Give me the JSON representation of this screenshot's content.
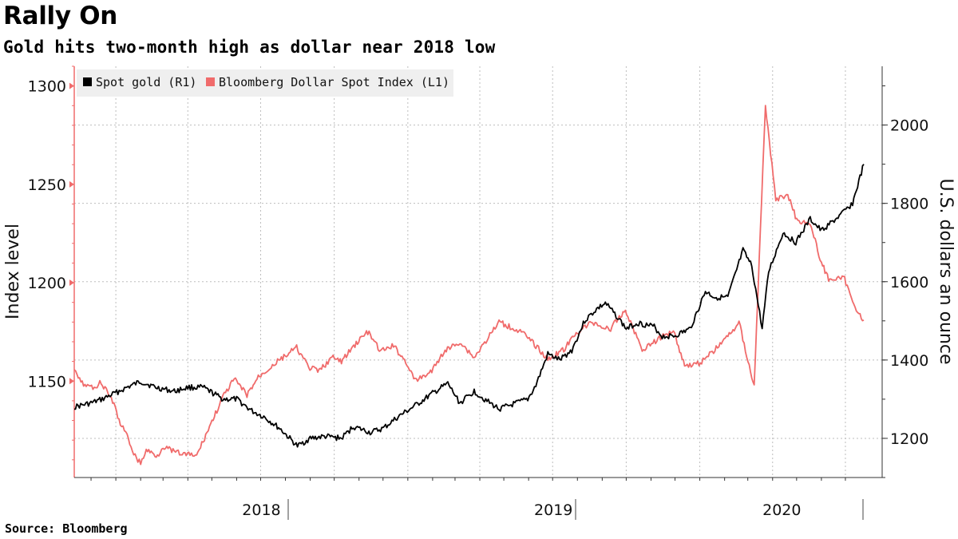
{
  "title": "Rally On",
  "subtitle": "Gold hits two-month high as dollar near 2018 low",
  "source": "Source: Bloomberg",
  "chart_data": {
    "type": "line",
    "x_range": [
      "2017-11-10",
      "2020-07-24"
    ],
    "year_labels": [
      {
        "label": "2018",
        "start": "2018-01-01",
        "end": "2018-12-31"
      },
      {
        "label": "2019",
        "start": "2019-01-01",
        "end": "2019-12-31"
      },
      {
        "label": "2020",
        "start": "2020-01-01",
        "end": "2020-07-24"
      }
    ],
    "left_axis": {
      "title": "Index level",
      "min": 1101,
      "max": 1310,
      "ticks": [
        1150,
        1200,
        1250,
        1300
      ],
      "minor_step": 10
    },
    "right_axis": {
      "title": "U.S. dollars an ounce",
      "min": 1100,
      "max": 2150,
      "ticks": [
        1200,
        1400,
        1600,
        1800,
        2000
      ],
      "minor_step": 100
    },
    "grid": true,
    "legend": {
      "position": "top-left"
    },
    "series": [
      {
        "name": "Spot gold (R1)",
        "axis": "right",
        "color": "#000000",
        "points": [
          [
            "2017-11-10",
            1280
          ],
          [
            "2017-12-01",
            1290
          ],
          [
            "2017-12-15",
            1300
          ],
          [
            "2018-01-15",
            1330
          ],
          [
            "2018-02-01",
            1345
          ],
          [
            "2018-02-20",
            1330
          ],
          [
            "2018-03-15",
            1320
          ],
          [
            "2018-04-01",
            1330
          ],
          [
            "2018-04-20",
            1330
          ],
          [
            "2018-05-15",
            1300
          ],
          [
            "2018-06-01",
            1300
          ],
          [
            "2018-06-20",
            1270
          ],
          [
            "2018-07-05",
            1255
          ],
          [
            "2018-07-25",
            1225
          ],
          [
            "2018-08-16",
            1180
          ],
          [
            "2018-09-01",
            1200
          ],
          [
            "2018-09-20",
            1205
          ],
          [
            "2018-10-10",
            1200
          ],
          [
            "2018-10-25",
            1230
          ],
          [
            "2018-11-15",
            1215
          ],
          [
            "2018-12-01",
            1225
          ],
          [
            "2018-12-20",
            1255
          ],
          [
            "2019-01-15",
            1290
          ],
          [
            "2019-02-01",
            1315
          ],
          [
            "2019-02-20",
            1340
          ],
          [
            "2019-03-07",
            1290
          ],
          [
            "2019-03-25",
            1320
          ],
          [
            "2019-04-10",
            1295
          ],
          [
            "2019-04-25",
            1275
          ],
          [
            "2019-05-10",
            1285
          ],
          [
            "2019-05-31",
            1300
          ],
          [
            "2019-06-10",
            1335
          ],
          [
            "2019-06-25",
            1415
          ],
          [
            "2019-07-10",
            1400
          ],
          [
            "2019-07-25",
            1425
          ],
          [
            "2019-08-10",
            1500
          ],
          [
            "2019-08-25",
            1530
          ],
          [
            "2019-09-05",
            1545
          ],
          [
            "2019-09-20",
            1510
          ],
          [
            "2019-10-01",
            1480
          ],
          [
            "2019-10-15",
            1495
          ],
          [
            "2019-11-05",
            1485
          ],
          [
            "2019-11-15",
            1460
          ],
          [
            "2019-12-01",
            1462
          ],
          [
            "2019-12-20",
            1480
          ],
          [
            "2020-01-08",
            1575
          ],
          [
            "2020-01-20",
            1560
          ],
          [
            "2020-02-05",
            1560
          ],
          [
            "2020-02-24",
            1680
          ],
          [
            "2020-03-06",
            1640
          ],
          [
            "2020-03-19",
            1480
          ],
          [
            "2020-03-27",
            1625
          ],
          [
            "2020-04-14",
            1725
          ],
          [
            "2020-04-30",
            1700
          ],
          [
            "2020-05-18",
            1760
          ],
          [
            "2020-06-01",
            1730
          ],
          [
            "2020-06-25",
            1770
          ],
          [
            "2020-07-10",
            1800
          ],
          [
            "2020-07-24",
            1900
          ]
        ]
      },
      {
        "name": "Bloomberg Dollar Spot Index (L1)",
        "axis": "left",
        "color": "#f06b6b",
        "points": [
          [
            "2017-11-10",
            1157
          ],
          [
            "2017-11-20",
            1149
          ],
          [
            "2017-12-05",
            1146
          ],
          [
            "2017-12-12",
            1150
          ],
          [
            "2017-12-28",
            1140
          ],
          [
            "2018-01-05",
            1130
          ],
          [
            "2018-01-15",
            1122
          ],
          [
            "2018-01-25",
            1112
          ],
          [
            "2018-02-01",
            1108
          ],
          [
            "2018-02-08",
            1115
          ],
          [
            "2018-02-22",
            1112
          ],
          [
            "2018-03-01",
            1117
          ],
          [
            "2018-03-15",
            1114
          ],
          [
            "2018-03-25",
            1113
          ],
          [
            "2018-04-12",
            1112
          ],
          [
            "2018-04-25",
            1124
          ],
          [
            "2018-05-15",
            1142
          ],
          [
            "2018-05-29",
            1151
          ],
          [
            "2018-06-14",
            1143
          ],
          [
            "2018-06-28",
            1152
          ],
          [
            "2018-07-19",
            1159
          ],
          [
            "2018-08-15",
            1167
          ],
          [
            "2018-08-30",
            1157
          ],
          [
            "2018-09-12",
            1155
          ],
          [
            "2018-09-28",
            1162
          ],
          [
            "2018-10-10",
            1160
          ],
          [
            "2018-10-30",
            1170
          ],
          [
            "2018-11-12",
            1175
          ],
          [
            "2018-11-28",
            1165
          ],
          [
            "2018-12-14",
            1168
          ],
          [
            "2018-12-31",
            1159
          ],
          [
            "2019-01-10",
            1150
          ],
          [
            "2019-01-31",
            1155
          ],
          [
            "2019-02-15",
            1165
          ],
          [
            "2019-03-07",
            1170
          ],
          [
            "2019-03-25",
            1162
          ],
          [
            "2019-04-25",
            1180
          ],
          [
            "2019-05-23",
            1175
          ],
          [
            "2019-06-10",
            1168
          ],
          [
            "2019-06-25",
            1161
          ],
          [
            "2019-07-15",
            1166
          ],
          [
            "2019-08-01",
            1175
          ],
          [
            "2019-08-20",
            1180
          ],
          [
            "2019-09-10",
            1176
          ],
          [
            "2019-09-30",
            1186
          ],
          [
            "2019-10-21",
            1166
          ],
          [
            "2019-11-05",
            1170
          ],
          [
            "2019-11-29",
            1176
          ],
          [
            "2019-12-13",
            1158
          ],
          [
            "2019-12-31",
            1159
          ],
          [
            "2020-01-15",
            1164
          ],
          [
            "2020-02-10",
            1175
          ],
          [
            "2020-02-19",
            1180
          ],
          [
            "2020-03-06",
            1152
          ],
          [
            "2020-03-09",
            1148
          ],
          [
            "2020-03-23",
            1290
          ],
          [
            "2020-04-05",
            1242
          ],
          [
            "2020-04-20",
            1245
          ],
          [
            "2020-05-01",
            1232
          ],
          [
            "2020-05-18",
            1230
          ],
          [
            "2020-06-01",
            1210
          ],
          [
            "2020-06-10",
            1202
          ],
          [
            "2020-06-30",
            1202
          ],
          [
            "2020-07-10",
            1190
          ],
          [
            "2020-07-24",
            1181
          ]
        ]
      }
    ]
  }
}
